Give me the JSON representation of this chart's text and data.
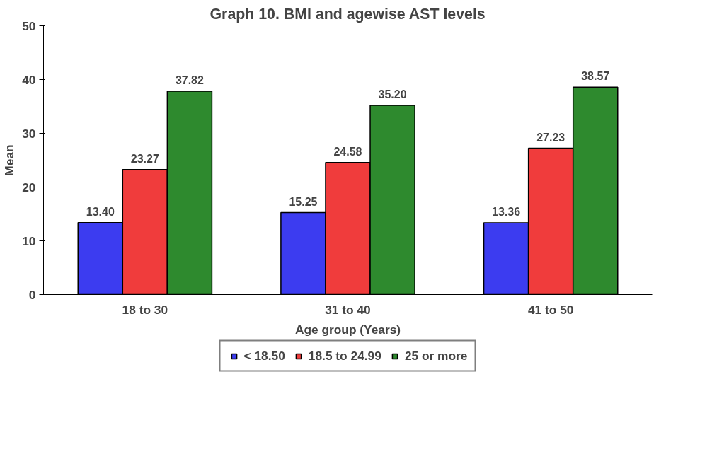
{
  "chart_data": {
    "type": "bar",
    "title": "Graph 10. BMI and agewise AST levels",
    "xlabel": "Age group (Years)",
    "ylabel": "Mean",
    "categories": [
      "18 to 30",
      "31 to 40",
      "41 to 50"
    ],
    "series": [
      {
        "name": "< 18.50",
        "color": "#3c3cf0",
        "values": [
          13.4,
          15.25,
          13.36
        ],
        "value_labels": [
          "13.40",
          "15.25",
          "13.36"
        ]
      },
      {
        "name": "18.5 to 24.99",
        "color": "#f03c3c",
        "values": [
          23.27,
          24.58,
          27.23
        ],
        "value_labels": [
          "23.27",
          "24.58",
          "27.23"
        ]
      },
      {
        "name": "25 or more",
        "color": "#2e8a2e",
        "values": [
          37.82,
          35.2,
          38.57
        ],
        "value_labels": [
          "37.82",
          "35.20",
          "38.57"
        ]
      }
    ],
    "ylim": [
      0,
      50
    ],
    "yticks": [
      0,
      10,
      20,
      30,
      40,
      50
    ],
    "grid": false,
    "legend": "bottom"
  }
}
